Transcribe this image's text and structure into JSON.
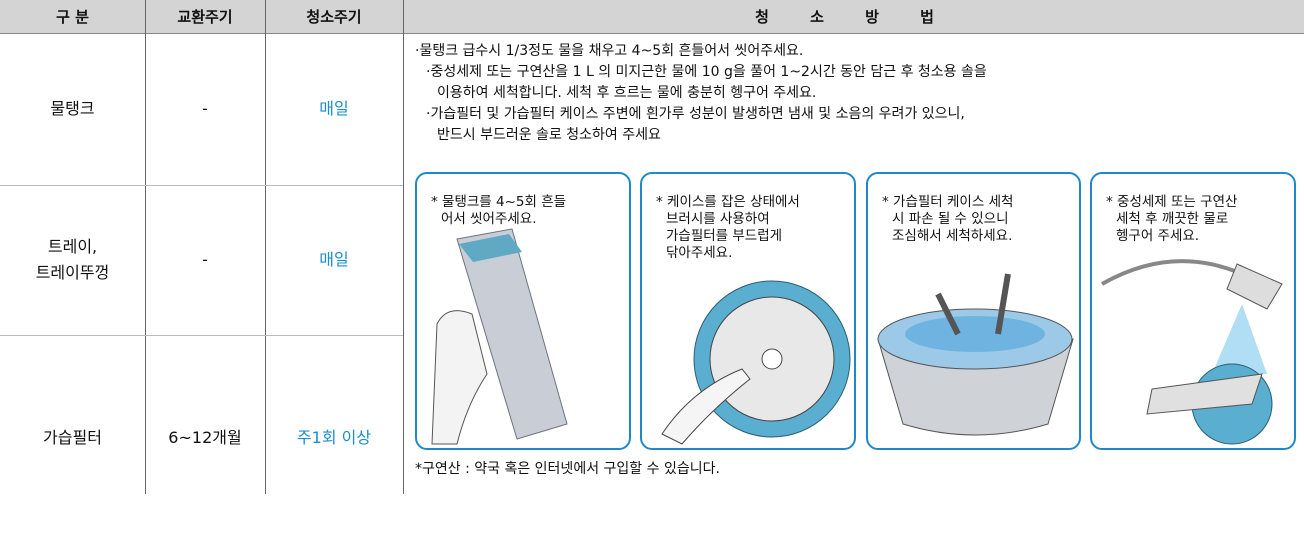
{
  "header": {
    "columns": [
      "구 분",
      "교환주기",
      "청소주기",
      "청 소 방 법"
    ]
  },
  "rows": [
    {
      "item": [
        "물탱크"
      ],
      "replace": "-",
      "clean": "매일"
    },
    {
      "item": [
        "트레이,",
        "트레이뚜껑"
      ],
      "replace": "-",
      "clean": "매일"
    },
    {
      "item": [
        "가습필터"
      ],
      "replace": "6~12개월",
      "clean": "주1회 이상"
    }
  ],
  "method": {
    "bullets": [
      [
        "·물탱크 급수시 1/3정도 물을 채우고 4~5회 흔들어서 씻어주세요."
      ],
      [
        "·중성세제 또는 구연산을 1 L 의 미지근한 물에 10 g을 풀어 1~2시간 동안 담근 후 청소용 솔을",
        "이용하여 세척합니다. 세척 후 흐르는 물에 충분히 헹구어 주세요."
      ],
      [
        "·가습필터 및 가습필터 케이스 주변에 흰가루 성분이 발생하면 냄새 및 소음의 우려가 있으니,",
        "반드시 부드러운 솔로 청소하여 주세요"
      ]
    ],
    "steps": [
      [
        "* 물탱크를 4~5회 흔들",
        "어서 씻어주세요."
      ],
      [
        "* 케이스를 잡은 상태에서",
        "브러시를 사용하여",
        "가습필터를 부드럽게",
        "닦아주세요."
      ],
      [
        "* 가습필터 케이스 세척",
        "시 파손 될 수 있으니",
        "조심해서 세척하세요."
      ],
      [
        "* 중성세제 또는 구연산",
        "세척 후 깨끗한 물로",
        "헹구어 주세요."
      ]
    ],
    "footnote": "*구연산 : 약국 혹은 인터넷에서 구입할 수 있습니다."
  }
}
